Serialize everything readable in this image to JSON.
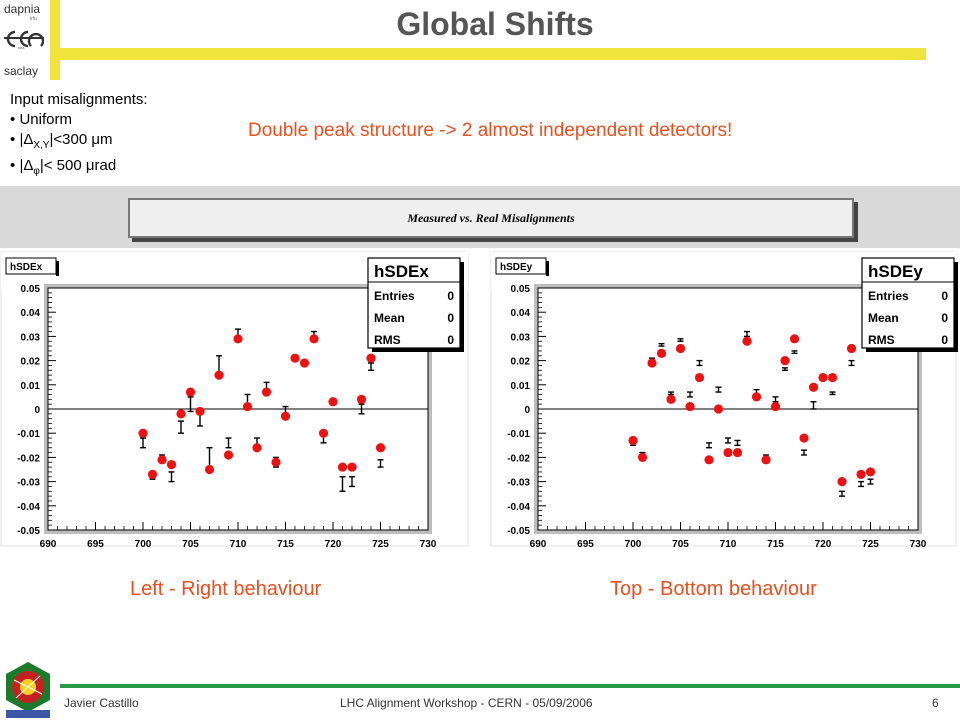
{
  "slide": {
    "title": "Global Shifts",
    "logo": {
      "line1": "dapnia",
      "line2": "cea",
      "line3": "saclay",
      "small": "irfu"
    },
    "inputs_heading": "Input misalignments:",
    "bullets": [
      {
        "bullet": "•",
        "text": "Uniform"
      },
      {
        "bullet": "•",
        "pre": "|Δ",
        "sub": "X,Y",
        "post": "|<300 μm"
      },
      {
        "bullet": "•",
        "pre": "|Δ",
        "sub": "φ",
        "post": "|< 500 μrad"
      }
    ],
    "headline": "Double peak structure -> 2 almost independent detectors!",
    "band_title": "Measured vs. Real Misalignments",
    "caption_left": "Left - Right behaviour",
    "caption_right": "Top - Bottom behaviour",
    "footer_author": "Javier Castillo",
    "footer_event": "LHC Alignment Workshop - CERN - 05/09/2006",
    "footer_page": "6",
    "colors": {
      "accent": "#e8501f",
      "yellow": "#f1e43d",
      "green": "#2a9a46",
      "marker": "#ee1111"
    }
  },
  "chart_data": [
    {
      "type": "scatter",
      "name_tag": "hSDEx",
      "stats": {
        "title": "hSDEx",
        "rows": [
          [
            "Entries",
            "0"
          ],
          [
            "Mean",
            "0"
          ],
          [
            "RMS",
            "0"
          ]
        ]
      },
      "xlim": [
        690,
        730
      ],
      "ylim": [
        -0.05,
        0.05
      ],
      "xticks": [
        "690",
        "695",
        "700",
        "705",
        "710",
        "715",
        "720",
        "725",
        "730"
      ],
      "yticks": [
        "0.05",
        "0.04",
        "0.03",
        "0.02",
        "0.01",
        "0",
        "-0.01",
        "-0.02",
        "-0.03",
        "-0.04",
        "-0.05"
      ],
      "red_points": [
        [
          700,
          -0.01
        ],
        [
          701,
          -0.027
        ],
        [
          702,
          -0.021
        ],
        [
          703,
          -0.023
        ],
        [
          704,
          -0.002
        ],
        [
          705,
          0.007
        ],
        [
          706,
          -0.001
        ],
        [
          707,
          -0.025
        ],
        [
          708,
          0.014
        ],
        [
          709,
          -0.019
        ],
        [
          710,
          0.029
        ],
        [
          711,
          0.001
        ],
        [
          712,
          -0.016
        ],
        [
          713,
          0.007
        ],
        [
          714,
          -0.022
        ],
        [
          715,
          -0.003
        ],
        [
          716,
          0.021
        ],
        [
          717,
          0.019
        ],
        [
          718,
          0.029
        ],
        [
          719,
          -0.01
        ],
        [
          720,
          0.003
        ],
        [
          721,
          -0.024
        ],
        [
          722,
          -0.024
        ],
        [
          723,
          0.004
        ],
        [
          724,
          0.021
        ],
        [
          725,
          -0.016
        ]
      ],
      "error_bars": [
        [
          700,
          -0.016,
          -0.012
        ],
        [
          701,
          -0.029,
          -0.026
        ],
        [
          702,
          -0.022,
          -0.019
        ],
        [
          703,
          -0.03,
          -0.026
        ],
        [
          704,
          -0.01,
          -0.005
        ],
        [
          705,
          -0.001,
          0.005
        ],
        [
          706,
          -0.007,
          -0.001
        ],
        [
          707,
          -0.026,
          -0.016
        ],
        [
          708,
          0.015,
          0.022
        ],
        [
          709,
          -0.016,
          -0.012
        ],
        [
          710,
          0.029,
          0.033
        ],
        [
          711,
          0.002,
          0.006
        ],
        [
          712,
          -0.016,
          -0.012
        ],
        [
          713,
          0.007,
          0.011
        ],
        [
          714,
          -0.024,
          -0.02
        ],
        [
          715,
          -0.002,
          0.001
        ],
        [
          716,
          0.02,
          0.022
        ],
        [
          717,
          0.018,
          0.02
        ],
        [
          718,
          0.028,
          0.032
        ],
        [
          719,
          -0.014,
          -0.01
        ],
        [
          720,
          0.002,
          0.004
        ],
        [
          721,
          -0.034,
          -0.028
        ],
        [
          722,
          -0.032,
          -0.028
        ],
        [
          723,
          -0.002,
          0.002
        ],
        [
          724,
          0.016,
          0.019
        ],
        [
          725,
          -0.024,
          -0.021
        ]
      ]
    },
    {
      "type": "scatter",
      "name_tag": "hSDEy",
      "stats": {
        "title": "hSDEy",
        "rows": [
          [
            "Entries",
            "0"
          ],
          [
            "Mean",
            "0"
          ],
          [
            "RMS",
            "0"
          ]
        ]
      },
      "xlim": [
        690,
        730
      ],
      "ylim": [
        -0.05,
        0.05
      ],
      "xticks": [
        "690",
        "695",
        "700",
        "705",
        "710",
        "715",
        "720",
        "725",
        "730"
      ],
      "yticks": [
        "0.05",
        "0.04",
        "0.03",
        "0.02",
        "0.01",
        "0",
        "-0.01",
        "-0.02",
        "-0.03",
        "-0.04",
        "-0.05"
      ],
      "red_points": [
        [
          700,
          -0.013
        ],
        [
          701,
          -0.02
        ],
        [
          702,
          0.019
        ],
        [
          703,
          0.023
        ],
        [
          704,
          0.004
        ],
        [
          705,
          0.025
        ],
        [
          706,
          0.001
        ],
        [
          707,
          0.013
        ],
        [
          708,
          -0.021
        ],
        [
          709,
          0.0
        ],
        [
          710,
          -0.018
        ],
        [
          711,
          -0.018
        ],
        [
          712,
          0.028
        ],
        [
          713,
          0.005
        ],
        [
          714,
          -0.021
        ],
        [
          715,
          0.001
        ],
        [
          716,
          0.02
        ],
        [
          717,
          0.029
        ],
        [
          718,
          -0.012
        ],
        [
          719,
          0.009
        ],
        [
          720,
          0.013
        ],
        [
          721,
          0.013
        ],
        [
          722,
          -0.03
        ],
        [
          723,
          0.025
        ],
        [
          724,
          -0.027
        ],
        [
          725,
          -0.026
        ]
      ],
      "error_bars": [
        [
          700,
          -0.015,
          -0.013
        ],
        [
          701,
          -0.02,
          -0.018
        ],
        [
          702,
          0.02,
          0.021
        ],
        [
          703,
          0.026,
          0.027
        ],
        [
          704,
          0.006,
          0.007
        ],
        [
          705,
          0.028,
          0.029
        ],
        [
          706,
          0.005,
          0.007
        ],
        [
          707,
          0.018,
          0.02
        ],
        [
          708,
          -0.016,
          -0.014
        ],
        [
          709,
          0.007,
          0.009
        ],
        [
          710,
          -0.014,
          -0.012
        ],
        [
          711,
          -0.015,
          -0.013
        ],
        [
          712,
          0.03,
          0.032
        ],
        [
          713,
          0.006,
          0.008
        ],
        [
          714,
          -0.021,
          -0.019
        ],
        [
          715,
          0.003,
          0.005
        ],
        [
          716,
          0.016,
          0.017
        ],
        [
          717,
          0.023,
          0.024
        ],
        [
          718,
          -0.019,
          -0.017
        ],
        [
          719,
          0.0,
          0.003
        ],
        [
          720,
          0.012,
          0.013
        ],
        [
          721,
          0.006,
          0.007
        ],
        [
          722,
          -0.036,
          -0.034
        ],
        [
          723,
          0.018,
          0.02
        ],
        [
          724,
          -0.032,
          -0.03
        ],
        [
          725,
          -0.031,
          -0.029
        ]
      ]
    }
  ]
}
